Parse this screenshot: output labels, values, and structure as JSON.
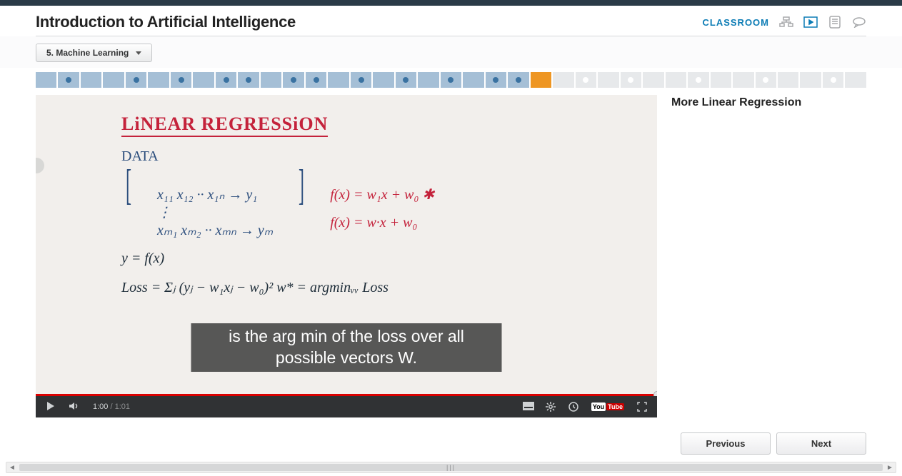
{
  "course": {
    "title": "Introduction to Artificial Intelligence"
  },
  "header": {
    "classroom": "CLASSROOM"
  },
  "module": {
    "current": "5. Machine Learning"
  },
  "progress": {
    "segments": [
      {
        "s": "done",
        "d": false
      },
      {
        "s": "done",
        "d": true
      },
      {
        "s": "done",
        "d": false
      },
      {
        "s": "done",
        "d": false
      },
      {
        "s": "done",
        "d": true
      },
      {
        "s": "done",
        "d": false
      },
      {
        "s": "done",
        "d": true
      },
      {
        "s": "done",
        "d": false
      },
      {
        "s": "done",
        "d": true
      },
      {
        "s": "done",
        "d": true
      },
      {
        "s": "done",
        "d": false
      },
      {
        "s": "done",
        "d": true
      },
      {
        "s": "done",
        "d": true
      },
      {
        "s": "done",
        "d": false
      },
      {
        "s": "done",
        "d": true
      },
      {
        "s": "done",
        "d": false
      },
      {
        "s": "done",
        "d": true
      },
      {
        "s": "done",
        "d": false
      },
      {
        "s": "done",
        "d": true
      },
      {
        "s": "done",
        "d": false
      },
      {
        "s": "done",
        "d": true
      },
      {
        "s": "done",
        "d": true
      },
      {
        "s": "curr",
        "d": false
      },
      {
        "s": "todo",
        "d": false
      },
      {
        "s": "todo",
        "d": true
      },
      {
        "s": "todo",
        "d": false
      },
      {
        "s": "todo",
        "d": true
      },
      {
        "s": "todo",
        "d": false
      },
      {
        "s": "todo",
        "d": false
      },
      {
        "s": "todo",
        "d": true
      },
      {
        "s": "todo",
        "d": false
      },
      {
        "s": "todo",
        "d": false
      },
      {
        "s": "todo",
        "d": true
      },
      {
        "s": "todo",
        "d": false
      },
      {
        "s": "todo",
        "d": false
      },
      {
        "s": "todo",
        "d": true
      },
      {
        "s": "todo",
        "d": false
      }
    ]
  },
  "lesson": {
    "title": "More Linear Regression"
  },
  "board": {
    "heading": "LiNEAR REGRESSiON",
    "data": "DATA",
    "m1": "x₁₁  x₁₂  ··  x₁ₙ  →  y₁",
    "m2": "⋮",
    "m3": "xₘ₁  xₘ₂  ·· xₘₙ  →  yₘ",
    "f1": "f(x) = w₁x + w₀   ✱",
    "f2": "f(x) = w·x + w₀",
    "eq1": "y = f(x)",
    "eq2": "Loss = Σⱼ (yⱼ − w₁xⱼ − w₀)²   w* = argminᵥᵥ Loss"
  },
  "caption": {
    "text": "is the arg min of the loss over all possible vectors W."
  },
  "controls": {
    "current": "1:00",
    "total": "1:01",
    "sep": " / ",
    "youtube": "You",
    "tube": "Tube"
  },
  "nav": {
    "prev": "Previous",
    "next": "Next"
  }
}
